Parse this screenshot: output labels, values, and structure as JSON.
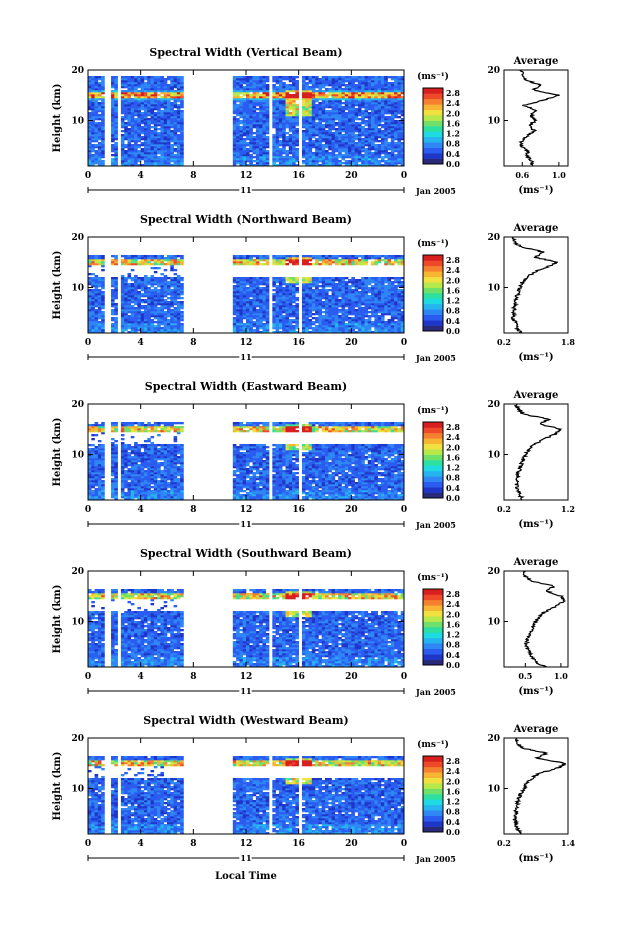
{
  "chart_data": {
    "type": "heatmap",
    "xlabel": "Local Time",
    "date_label": "Jan 2005",
    "day_label": "11",
    "heatmap_x_ticks": [
      0,
      4,
      8,
      12,
      16,
      20,
      0
    ],
    "heatmap_xlim": [
      0,
      24
    ],
    "heatmap_y_ticks": [
      10,
      20
    ],
    "heatmap_ylim": [
      1,
      20
    ],
    "ylabel": "Height (km)",
    "avg_ylim": [
      1,
      20
    ],
    "colorbar": {
      "unit": "(ms⁻¹)",
      "ticks": [
        "0.0",
        "0.4",
        "0.8",
        "1.2",
        "1.6",
        "2.0",
        "2.4",
        "2.8"
      ],
      "range": [
        0,
        3.0
      ],
      "colors": [
        "#2a2a7a",
        "#1f37c8",
        "#2a5cf0",
        "#2f86f5",
        "#26b4f0",
        "#1ddbe0",
        "#2de0a0",
        "#6fe06a",
        "#b8e84a",
        "#f0e040",
        "#f7b533",
        "#f58030",
        "#ee4a2a",
        "#d81f1f"
      ]
    },
    "data_gaps_hours": [
      [
        1.3,
        1.7
      ],
      [
        2.2,
        2.5
      ],
      [
        7.3,
        11.0
      ],
      [
        13.8,
        14.1
      ],
      [
        15.9,
        16.2
      ]
    ],
    "panels": [
      {
        "title": "Spectral Width (Vertical Beam)",
        "avg_title": "Average",
        "avg_xlabel": "(ms⁻¹)",
        "avg_ticks": [
          "0.6",
          "1.0"
        ],
        "avg_xlim": [
          0.4,
          1.1
        ],
        "avg_height_km": [
          1,
          2,
          3,
          4,
          5,
          6,
          7,
          8,
          9,
          10,
          11,
          12,
          13,
          14,
          15,
          16,
          17,
          18,
          19,
          20
        ],
        "avg_width": [
          0.72,
          0.7,
          0.65,
          0.66,
          0.58,
          0.6,
          0.66,
          0.73,
          0.68,
          0.74,
          0.7,
          0.74,
          0.62,
          0.83,
          1.0,
          0.72,
          0.8,
          0.64,
          0.6,
          0.58
        ]
      },
      {
        "title": "Spectral Width (Northward Beam)",
        "avg_title": "Average",
        "avg_xlabel": "(ms⁻¹)",
        "avg_ticks": [
          "0.2",
          "1.8"
        ],
        "avg_xlim": [
          0.2,
          1.8
        ],
        "avg_height_km": [
          1,
          2,
          3,
          4,
          5,
          6,
          7,
          8,
          9,
          10,
          11,
          12,
          13,
          14,
          15,
          16,
          17,
          18,
          19,
          20
        ],
        "avg_width": [
          0.62,
          0.52,
          0.5,
          0.42,
          0.45,
          0.46,
          0.48,
          0.52,
          0.55,
          0.6,
          0.65,
          0.78,
          0.95,
          1.25,
          1.55,
          0.95,
          1.2,
          0.65,
          0.45,
          0.42
        ]
      },
      {
        "title": "Spectral Width (Eastward Beam)",
        "avg_title": "Average",
        "avg_xlabel": "(ms⁻¹)",
        "avg_ticks": [
          "0.2",
          "1.2"
        ],
        "avg_xlim": [
          0.2,
          1.2
        ],
        "avg_height_km": [
          1,
          2,
          3,
          4,
          5,
          6,
          7,
          8,
          9,
          10,
          11,
          12,
          13,
          14,
          15,
          16,
          17,
          18,
          19,
          20
        ],
        "avg_width": [
          0.5,
          0.45,
          0.42,
          0.4,
          0.4,
          0.42,
          0.44,
          0.47,
          0.5,
          0.55,
          0.58,
          0.68,
          0.8,
          1.0,
          1.1,
          0.75,
          0.9,
          0.5,
          0.42,
          0.38
        ]
      },
      {
        "title": "Spectral Width (Southward Beam)",
        "avg_title": "Average",
        "avg_xlabel": "(ms⁻¹)",
        "avg_ticks": [
          "0.5",
          "1.0"
        ],
        "avg_xlim": [
          0.2,
          1.1
        ],
        "avg_height_km": [
          1,
          2,
          3,
          4,
          5,
          6,
          7,
          8,
          9,
          10,
          11,
          12,
          13,
          14,
          15,
          16,
          17,
          18,
          19,
          20
        ],
        "avg_width": [
          0.78,
          0.65,
          0.6,
          0.55,
          0.52,
          0.52,
          0.55,
          0.58,
          0.6,
          0.65,
          0.7,
          0.78,
          0.92,
          1.05,
          1.0,
          0.8,
          0.9,
          0.6,
          0.5,
          0.48
        ]
      },
      {
        "title": "Spectral Width (Westward Beam)",
        "avg_title": "Average",
        "avg_xlabel": "(ms⁻¹)",
        "avg_ticks": [
          "0.2",
          "1.4"
        ],
        "avg_xlim": [
          0.2,
          1.4
        ],
        "avg_height_km": [
          1,
          2,
          3,
          4,
          5,
          6,
          7,
          8,
          9,
          10,
          11,
          12,
          13,
          14,
          15,
          16,
          17,
          18,
          19,
          20
        ],
        "avg_width": [
          0.52,
          0.45,
          0.42,
          0.4,
          0.42,
          0.43,
          0.45,
          0.48,
          0.52,
          0.58,
          0.62,
          0.72,
          0.85,
          1.2,
          1.35,
          0.8,
          1.0,
          0.55,
          0.45,
          0.42
        ]
      }
    ]
  }
}
